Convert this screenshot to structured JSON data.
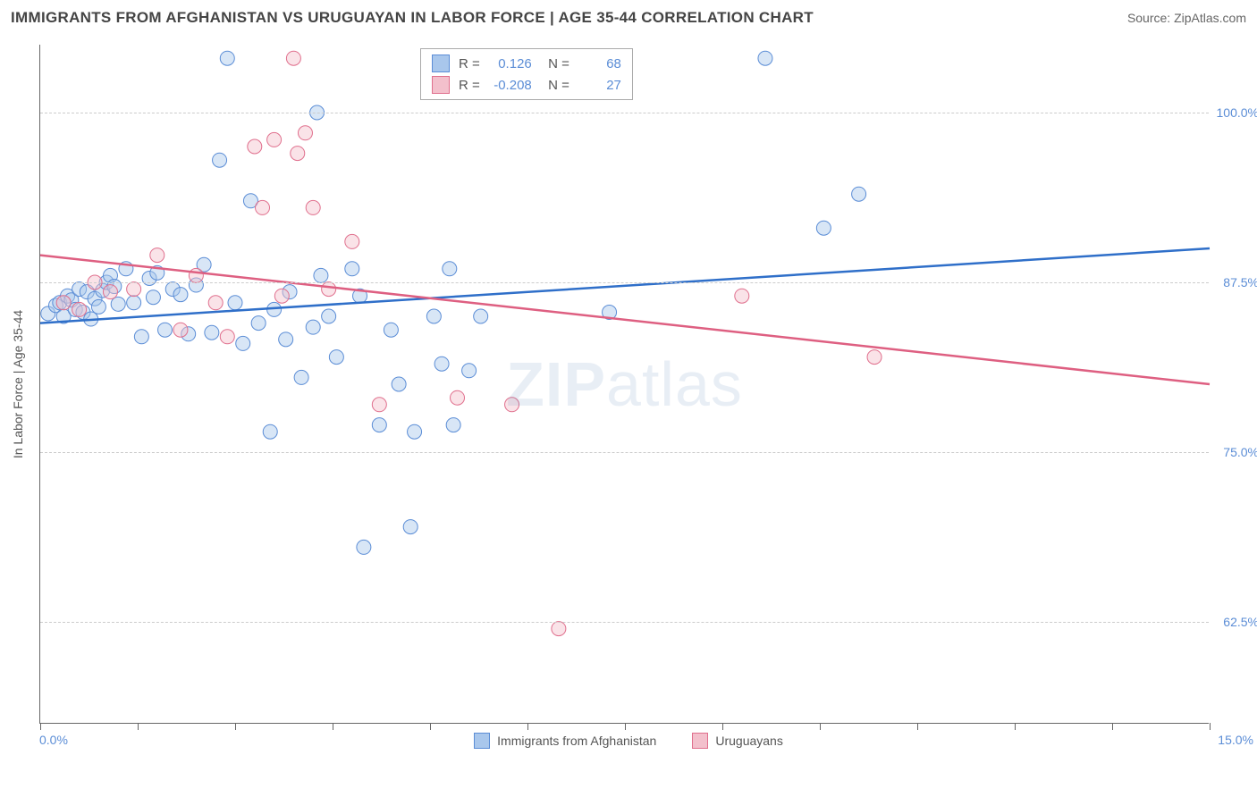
{
  "title": "IMMIGRANTS FROM AFGHANISTAN VS URUGUAYAN IN LABOR FORCE | AGE 35-44 CORRELATION CHART",
  "source": "Source: ZipAtlas.com",
  "y_axis_title": "In Labor Force | Age 35-44",
  "watermark_bold": "ZIP",
  "watermark_rest": "atlas",
  "chart": {
    "type": "scatter-correlation",
    "background_color": "#ffffff",
    "grid_color": "#cccccc",
    "axis_color": "#666666",
    "xlim": [
      0,
      15
    ],
    "ylim": [
      55,
      105
    ],
    "x_ticks": [
      0,
      1.25,
      2.5,
      3.75,
      5,
      6.25,
      7.5,
      8.75,
      10,
      11.25,
      12.5,
      13.75,
      15
    ],
    "y_ticks": [
      {
        "v": 62.5,
        "label": "62.5%"
      },
      {
        "v": 75.0,
        "label": "75.0%"
      },
      {
        "v": 87.5,
        "label": "87.5%"
      },
      {
        "v": 100.0,
        "label": "100.0%"
      }
    ],
    "x_left_label": "0.0%",
    "x_right_label": "15.0%",
    "marker_radius": 8,
    "marker_opacity": 0.45,
    "line_width": 2.5,
    "series": [
      {
        "name": "Immigrants from Afghanistan",
        "fill": "#a9c7ec",
        "stroke": "#5b8dd6",
        "line_color": "#2f6fc9",
        "r_value": "0.126",
        "n_value": "68",
        "trend": {
          "x1": 0,
          "y1": 84.5,
          "x2": 15,
          "y2": 90.0
        },
        "points": [
          [
            0.1,
            85.2
          ],
          [
            0.2,
            85.8
          ],
          [
            0.25,
            86.0
          ],
          [
            0.3,
            85.0
          ],
          [
            0.35,
            86.5
          ],
          [
            0.4,
            86.2
          ],
          [
            0.45,
            85.5
          ],
          [
            0.5,
            87.0
          ],
          [
            0.55,
            85.3
          ],
          [
            0.6,
            86.8
          ],
          [
            0.65,
            84.8
          ],
          [
            0.7,
            86.3
          ],
          [
            0.75,
            85.7
          ],
          [
            0.8,
            86.9
          ],
          [
            0.85,
            87.5
          ],
          [
            0.9,
            88.0
          ],
          [
            0.95,
            87.2
          ],
          [
            1.0,
            85.9
          ],
          [
            1.1,
            88.5
          ],
          [
            1.2,
            86.0
          ],
          [
            1.3,
            83.5
          ],
          [
            1.4,
            87.8
          ],
          [
            1.45,
            86.4
          ],
          [
            1.5,
            88.2
          ],
          [
            1.6,
            84.0
          ],
          [
            1.7,
            87.0
          ],
          [
            1.8,
            86.6
          ],
          [
            1.9,
            83.7
          ],
          [
            2.0,
            87.3
          ],
          [
            2.1,
            88.8
          ],
          [
            2.2,
            83.8
          ],
          [
            2.3,
            96.5
          ],
          [
            2.4,
            104.0
          ],
          [
            2.5,
            86.0
          ],
          [
            2.6,
            83.0
          ],
          [
            2.7,
            93.5
          ],
          [
            2.8,
            84.5
          ],
          [
            2.95,
            76.5
          ],
          [
            3.0,
            85.5
          ],
          [
            3.15,
            83.3
          ],
          [
            3.2,
            86.8
          ],
          [
            3.35,
            80.5
          ],
          [
            3.5,
            84.2
          ],
          [
            3.55,
            100.0
          ],
          [
            3.6,
            88.0
          ],
          [
            3.7,
            85.0
          ],
          [
            3.8,
            82.0
          ],
          [
            4.0,
            88.5
          ],
          [
            4.1,
            86.5
          ],
          [
            4.15,
            68.0
          ],
          [
            4.35,
            77.0
          ],
          [
            4.5,
            84.0
          ],
          [
            4.6,
            80.0
          ],
          [
            4.75,
            69.5
          ],
          [
            4.8,
            76.5
          ],
          [
            5.05,
            85.0
          ],
          [
            5.15,
            81.5
          ],
          [
            5.25,
            88.5
          ],
          [
            5.3,
            77.0
          ],
          [
            5.5,
            81.0
          ],
          [
            5.65,
            85.0
          ],
          [
            6.05,
            104.0
          ],
          [
            7.3,
            85.3
          ],
          [
            9.3,
            104.0
          ],
          [
            10.05,
            91.5
          ],
          [
            10.5,
            94.0
          ]
        ]
      },
      {
        "name": "Uruguayans",
        "fill": "#f3c0cc",
        "stroke": "#e06f8d",
        "line_color": "#de5f81",
        "r_value": "-0.208",
        "n_value": "27",
        "trend": {
          "x1": 0,
          "y1": 89.5,
          "x2": 15,
          "y2": 80.0
        },
        "points": [
          [
            0.3,
            86.0
          ],
          [
            0.5,
            85.5
          ],
          [
            0.7,
            87.5
          ],
          [
            0.9,
            86.8
          ],
          [
            1.2,
            87.0
          ],
          [
            1.5,
            89.5
          ],
          [
            1.8,
            84.0
          ],
          [
            2.0,
            88.0
          ],
          [
            2.25,
            86.0
          ],
          [
            2.4,
            83.5
          ],
          [
            2.75,
            97.5
          ],
          [
            2.85,
            93.0
          ],
          [
            3.0,
            98.0
          ],
          [
            3.1,
            86.5
          ],
          [
            3.25,
            104.0
          ],
          [
            3.3,
            97.0
          ],
          [
            3.4,
            98.5
          ],
          [
            3.5,
            93.0
          ],
          [
            3.7,
            87.0
          ],
          [
            4.0,
            90.5
          ],
          [
            4.35,
            78.5
          ],
          [
            5.35,
            79.0
          ],
          [
            6.05,
            78.5
          ],
          [
            6.65,
            62.0
          ],
          [
            9.0,
            86.5
          ],
          [
            10.7,
            82.0
          ]
        ]
      }
    ],
    "bottom_legend": [
      {
        "label": "Immigrants from Afghanistan",
        "fill": "#a9c7ec",
        "stroke": "#5b8dd6"
      },
      {
        "label": "Uruguayans",
        "fill": "#f3c0cc",
        "stroke": "#e06f8d"
      }
    ]
  }
}
